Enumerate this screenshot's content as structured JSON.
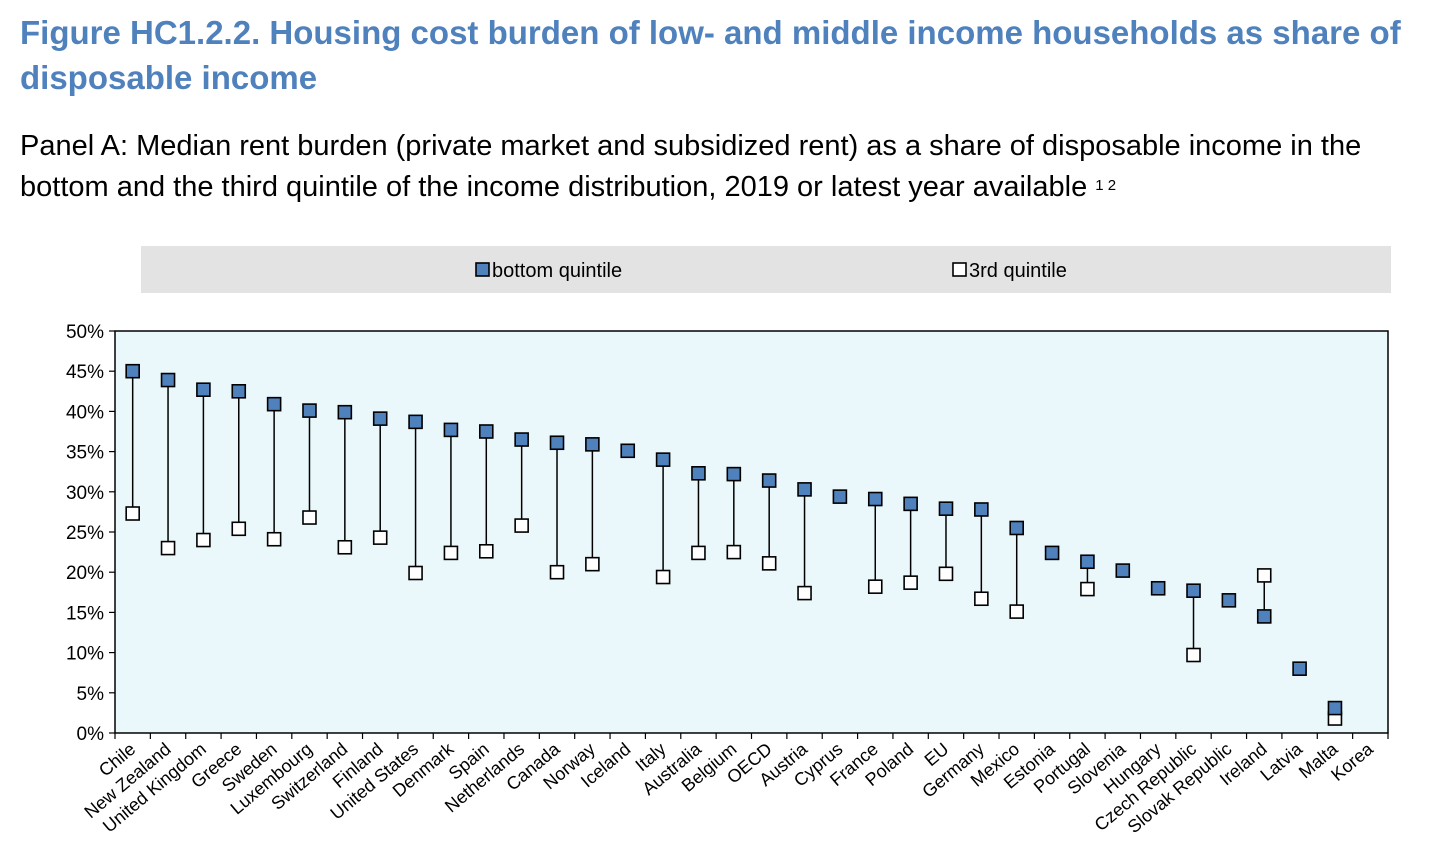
{
  "figure_title": "Figure HC1.2.2. Housing cost burden of low- and middle income households as share of disposable income",
  "panel_title": "Panel A: Median rent burden (private market and subsidized rent) as a share of disposable income in the bottom and the third quintile of the income distribution, 2019 or latest year available",
  "panel_title_notes": "1 2",
  "colors": {
    "title": "#4f81bd",
    "plot_background": "#eaf8fb",
    "legend_background": "#e3e3e3",
    "bottom_marker": "#4f81bd",
    "third_marker": "#ffffff"
  },
  "chart_data": {
    "type": "scatter",
    "ylim": [
      0,
      50
    ],
    "y_ticks": [
      "0%",
      "5%",
      "10%",
      "15%",
      "20%",
      "25%",
      "30%",
      "35%",
      "40%",
      "45%",
      "50%"
    ],
    "grid": false,
    "legend_position": "top",
    "categories": [
      "Chile",
      "New Zealand",
      "United Kingdom",
      "Greece",
      "Sweden",
      "Luxembourg",
      "Switzerland",
      "Finland",
      "United States",
      "Denmark",
      "Spain",
      "Netherlands",
      "Canada",
      "Norway",
      "Iceland",
      "Italy",
      "Australia",
      "Belgium",
      "OECD",
      "Austria",
      "Cyprus",
      "France",
      "Poland",
      "EU",
      "Germany",
      "Mexico",
      "Estonia",
      "Portugal",
      "Slovenia",
      "Hungary",
      "Czech Republic",
      "Slovak Republic",
      "Ireland",
      "Latvia",
      "Malta",
      "Korea"
    ],
    "series": [
      {
        "name": "bottom quintile",
        "values": [
          45.0,
          43.9,
          42.7,
          42.5,
          40.9,
          40.1,
          39.9,
          39.1,
          38.7,
          37.7,
          37.5,
          36.5,
          36.1,
          35.9,
          35.1,
          34.0,
          32.3,
          32.2,
          31.4,
          30.3,
          29.4,
          29.1,
          28.5,
          27.9,
          27.8,
          25.5,
          22.4,
          21.3,
          20.2,
          18.0,
          17.7,
          16.5,
          14.5,
          8.0,
          3.1,
          null
        ]
      },
      {
        "name": "3rd quintile",
        "values": [
          27.3,
          23.0,
          24.0,
          25.4,
          24.1,
          26.8,
          23.1,
          24.3,
          19.9,
          22.4,
          22.6,
          25.8,
          20.0,
          21.0,
          null,
          19.4,
          22.4,
          22.5,
          21.1,
          17.4,
          null,
          18.2,
          18.7,
          19.8,
          16.7,
          15.1,
          null,
          17.9,
          null,
          null,
          9.7,
          null,
          19.6,
          null,
          1.8,
          null
        ]
      }
    ]
  }
}
